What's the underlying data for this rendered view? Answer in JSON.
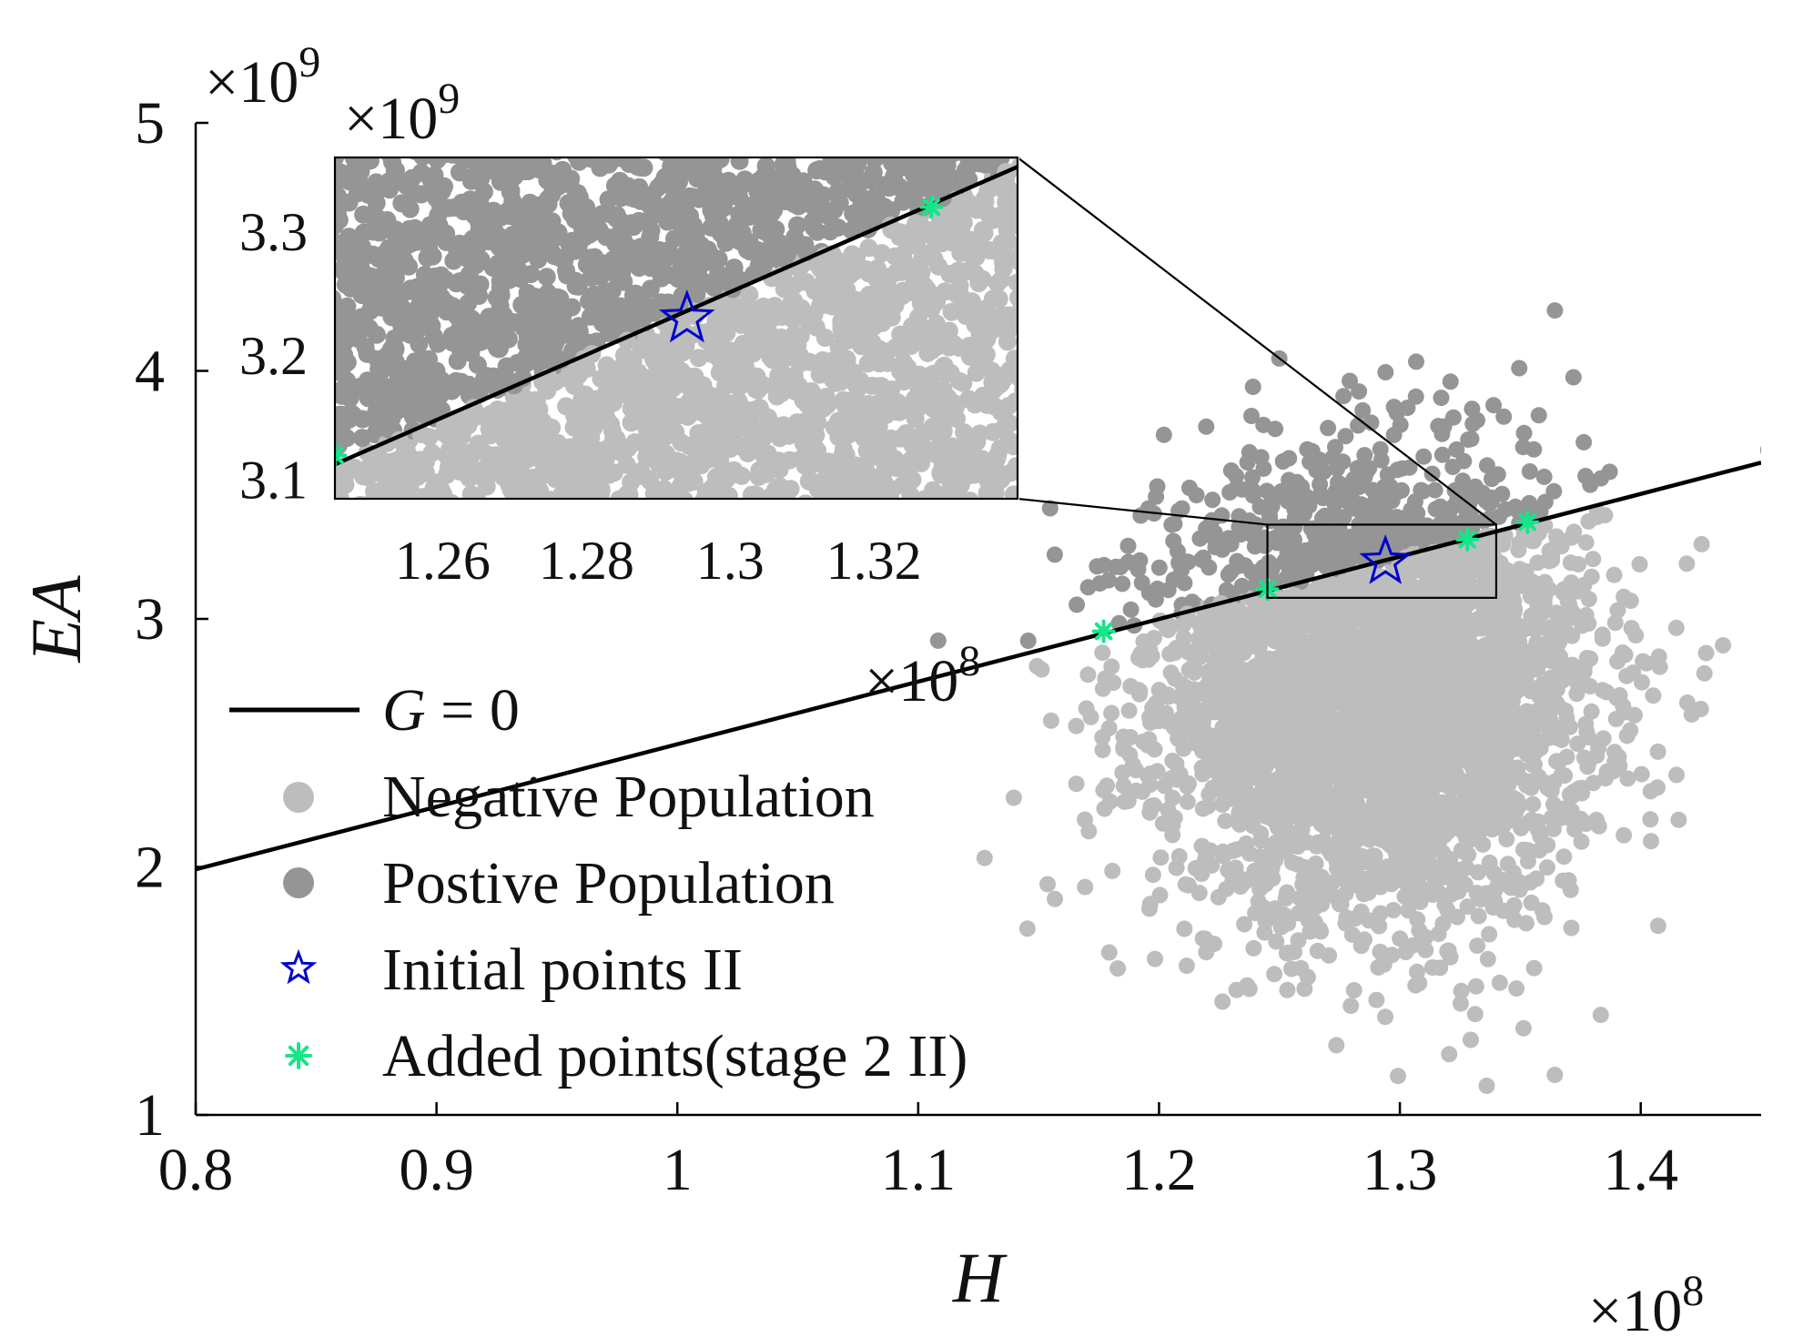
{
  "chart_data": {
    "type": "scatter",
    "xlabel": "H",
    "ylabel": "EA",
    "x_exponent_label": {
      "base": "×10",
      "power": "8"
    },
    "y_exponent_label": {
      "base": "×10",
      "power": "9"
    },
    "xlim": [
      0.8,
      1.45
    ],
    "ylim": [
      1,
      5
    ],
    "x_ticks": [
      "0.8",
      "0.9",
      "1",
      "1.1",
      "1.2",
      "1.3",
      "1.4"
    ],
    "y_ticks": [
      "1",
      "2",
      "3",
      "4",
      "5"
    ],
    "grid": false,
    "legend_position": "left",
    "series": [
      {
        "name": "G = 0",
        "kind": "line",
        "color": "#000000",
        "points": [
          [
            0.8,
            1.99
          ],
          [
            1.45,
            3.63
          ]
        ]
      },
      {
        "name": "Negative Population",
        "kind": "cloud",
        "color": "#bdbdbd",
        "center": [
          1.29,
          2.7
        ],
        "spread": [
          0.045,
          0.45
        ],
        "side": "below G = 0"
      },
      {
        "name": "Postive Population",
        "kind": "cloud",
        "color": "#959595",
        "center": [
          1.29,
          2.7
        ],
        "spread": [
          0.045,
          0.45
        ],
        "side": "above G = 0"
      },
      {
        "name": "Initial points II",
        "kind": "marker",
        "marker": "star",
        "color": "#0000cc",
        "points": [
          [
            1.294,
            3.23
          ]
        ]
      },
      {
        "name": "Added points(stage 2 II)",
        "kind": "marker",
        "marker": "asterisk",
        "color": "#14e68a",
        "points": [
          [
            1.177,
            2.95
          ],
          [
            1.245,
            3.12
          ],
          [
            1.328,
            3.32
          ],
          [
            1.353,
            3.39
          ]
        ]
      }
    ],
    "zoom_box": {
      "xlim": [
        1.245,
        1.34
      ],
      "ylim": [
        3.085,
        3.38
      ]
    },
    "inset": {
      "xlim": [
        1.245,
        1.34
      ],
      "ylim": [
        3.085,
        3.36
      ],
      "x_ticks": [
        "1.26",
        "1.28",
        "1.3",
        "1.32"
      ],
      "y_ticks": [
        "3.1",
        "3.2",
        "3.3"
      ],
      "x_exponent_label": {
        "base": "×10",
        "power": "8"
      },
      "y_exponent_label": {
        "base": "×10",
        "power": "9"
      }
    },
    "legend": {
      "items": [
        {
          "label_prefix": "G",
          "label_suffix": " = 0",
          "symbol": "line"
        },
        {
          "label": "Negative Population",
          "symbol": "dot-light"
        },
        {
          "label": "Postive Population",
          "symbol": "dot-dark"
        },
        {
          "label": "Initial points II",
          "symbol": "star"
        },
        {
          "label": "Added points(stage 2 II)",
          "symbol": "asterisk"
        }
      ]
    }
  }
}
